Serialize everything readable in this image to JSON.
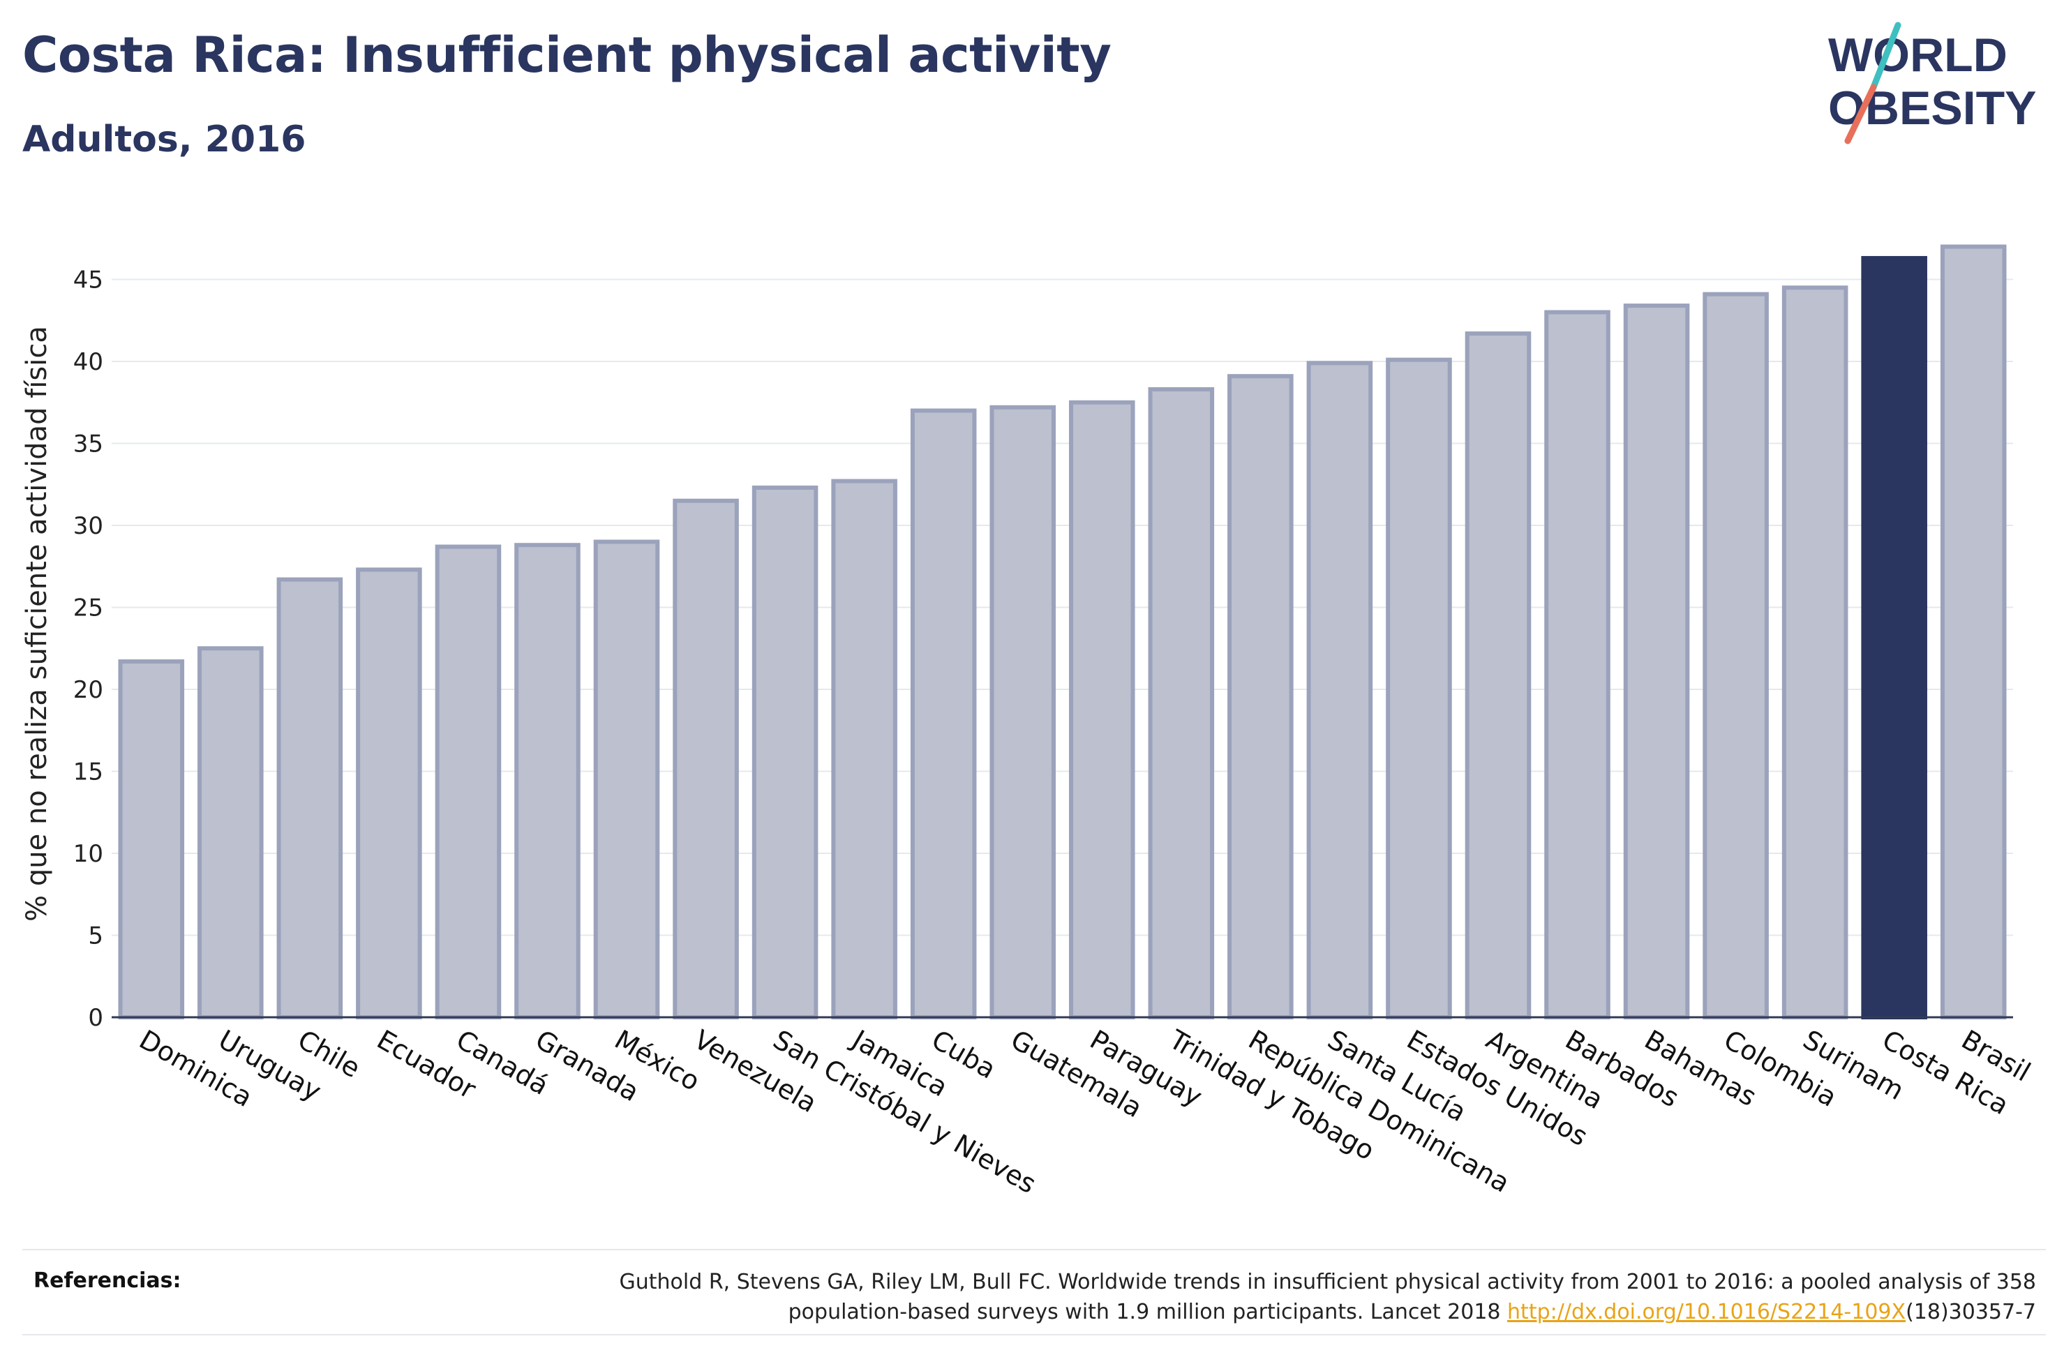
{
  "header": {
    "title": "Costa Rica: Insufficient physical activity",
    "subtitle": "Adultos, 2016"
  },
  "logo": {
    "line1": "WORLD",
    "line2": "OBESITY"
  },
  "colors": {
    "bar_default": "#bcc0cf",
    "bar_default_border": "#9ba2bb",
    "bar_highlight": "#2a3560",
    "grid": "#e6e8ee",
    "logo_text": "#2a3560",
    "logo_teal": "#3fbfbf",
    "logo_coral": "#e8705a"
  },
  "chart_data": {
    "type": "bar",
    "categories": [
      "Dominica",
      "Uruguay",
      "Chile",
      "Ecuador",
      "Canadá",
      "Granada",
      "México",
      "Venezuela",
      "San Cristóbal y Nieves",
      "Jamaica",
      "Cuba",
      "Guatemala",
      "Paraguay",
      "Trinidad y Tobago",
      "República Dominicana",
      "Santa Lucía",
      "Estados Unidos",
      "Argentina",
      "Barbados",
      "Bahamas",
      "Colombia",
      "Surinam",
      "Costa Rica",
      "Brasil"
    ],
    "values": [
      21.7,
      22.5,
      26.7,
      27.3,
      28.7,
      28.8,
      29.0,
      31.5,
      32.3,
      32.7,
      37.0,
      37.2,
      37.5,
      38.3,
      39.1,
      39.9,
      40.1,
      41.7,
      43.0,
      43.4,
      44.1,
      44.5,
      46.3,
      47.0
    ],
    "highlight": "Costa Rica",
    "ylabel": "% que no realiza suficiente actividad física",
    "xlabel": "",
    "ylim": [
      0,
      48
    ],
    "yticks": [
      0,
      5,
      10,
      15,
      20,
      25,
      30,
      35,
      40,
      45
    ],
    "grid": true,
    "legend": "none"
  },
  "footer": {
    "ref_label": "Referencias:",
    "ref_text_1": "Guthold R, Stevens GA, Riley LM, Bull FC. Worldwide trends in insufficient physical activity from 2001 to 2016: a pooled analysis of 358",
    "ref_text_2": "population-based surveys with 1.9 million participants. Lancet 2018",
    "ref_link": "http://dx.doi.org/10.1016/S2214-109X",
    "ref_text_3": "(18)30357-7"
  }
}
